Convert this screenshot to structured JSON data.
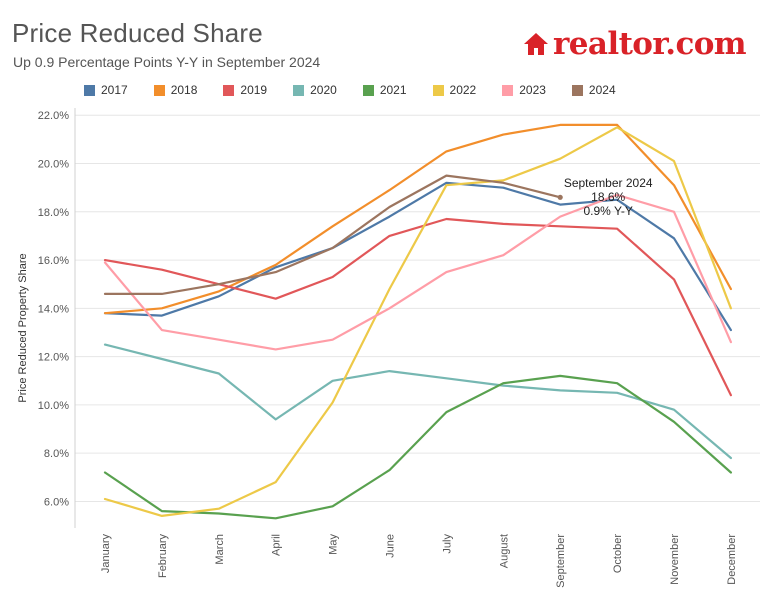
{
  "header": {
    "title": "Price Reduced Share",
    "subtitle": "Up 0.9 Percentage Points Y-Y in September 2024",
    "logo_text": "realtor.com"
  },
  "colors": {
    "brand": "#d92228"
  },
  "chart_data": {
    "type": "line",
    "title": "Price Reduced Share",
    "subtitle": "Up 0.9 Percentage Points Y-Y in September 2024",
    "xlabel": "",
    "ylabel": "Price Reduced Property Share",
    "ylim": [
      4.9,
      22.3
    ],
    "yticks": [
      6,
      8,
      10,
      12,
      14,
      16,
      18,
      20,
      22
    ],
    "ytick_labels": [
      "6.0%",
      "8.0%",
      "10.0%",
      "12.0%",
      "14.0%",
      "16.0%",
      "18.0%",
      "20.0%",
      "22.0%"
    ],
    "categories": [
      "January",
      "February",
      "March",
      "April",
      "May",
      "June",
      "July",
      "August",
      "September",
      "October",
      "November",
      "December"
    ],
    "grid": true,
    "legend_placement": "top",
    "series": [
      {
        "name": "2017",
        "color": "#4e79a7",
        "values": [
          13.8,
          13.7,
          14.5,
          15.7,
          16.5,
          17.8,
          19.2,
          19.0,
          18.3,
          18.5,
          16.9,
          13.1
        ]
      },
      {
        "name": "2018",
        "color": "#f28e2b",
        "values": [
          13.8,
          14.0,
          14.7,
          15.8,
          17.4,
          18.9,
          20.5,
          21.2,
          21.6,
          21.6,
          19.1,
          14.8
        ]
      },
      {
        "name": "2019",
        "color": "#e15759",
        "values": [
          16.0,
          15.6,
          15.0,
          14.4,
          15.3,
          17.0,
          17.7,
          17.5,
          17.4,
          17.3,
          15.2,
          10.4
        ]
      },
      {
        "name": "2020",
        "color": "#76b7b2",
        "values": [
          12.5,
          11.9,
          11.3,
          9.4,
          11.0,
          11.4,
          11.1,
          10.8,
          10.6,
          10.5,
          9.8,
          7.8
        ]
      },
      {
        "name": "2021",
        "color": "#59a14f",
        "values": [
          7.2,
          5.6,
          5.5,
          5.3,
          5.8,
          7.3,
          9.7,
          10.9,
          11.2,
          10.9,
          9.3,
          7.2
        ]
      },
      {
        "name": "2022",
        "color": "#edc948",
        "values": [
          6.1,
          5.4,
          5.7,
          6.8,
          10.1,
          14.8,
          19.1,
          19.3,
          20.2,
          21.5,
          20.1,
          14.0
        ]
      },
      {
        "name": "2023",
        "color": "#ff9da7",
        "values": [
          15.9,
          13.1,
          12.7,
          12.3,
          12.7,
          14.0,
          15.5,
          16.2,
          17.8,
          18.7,
          18.0,
          12.6
        ]
      },
      {
        "name": "2024",
        "color": "#9c755f",
        "values": [
          14.6,
          14.6,
          15.0,
          15.5,
          16.5,
          18.2,
          19.5,
          19.2,
          18.6,
          null,
          null,
          null
        ]
      }
    ],
    "annotation": {
      "month": "September",
      "series": "2024",
      "lines": [
        "September 2024",
        "18.6%",
        "0.9% Y-Y"
      ]
    }
  }
}
